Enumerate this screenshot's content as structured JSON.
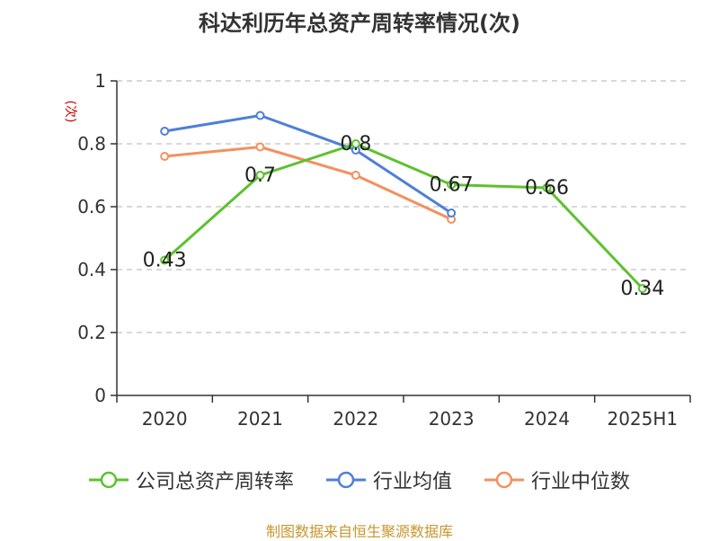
{
  "chart_data": {
    "type": "line",
    "title": "科达利历年总资产周转率情况(次)",
    "ylabel": "(次)",
    "categories": [
      "2020",
      "2021",
      "2022",
      "2023",
      "2024",
      "2025H1"
    ],
    "ylim": [
      0,
      1
    ],
    "yticks": [
      "0",
      "0.2",
      "0.4",
      "0.6",
      "0.8",
      "1"
    ],
    "grid": true,
    "legend_position": "bottom",
    "series": [
      {
        "name": "公司总资产周转率",
        "color": "#5cc22e",
        "values": [
          0.43,
          0.7,
          0.8,
          0.67,
          0.66,
          0.34
        ],
        "labels": [
          "0.43",
          "0.7",
          "0.8",
          "0.67",
          "0.66",
          "0.34"
        ]
      },
      {
        "name": "行业均值",
        "color": "#4f7fd8",
        "values": [
          0.84,
          0.89,
          0.78,
          0.58,
          null,
          null
        ]
      },
      {
        "name": "行业中位数",
        "color": "#f3905e",
        "values": [
          0.76,
          0.79,
          0.7,
          0.56,
          null,
          null
        ]
      }
    ],
    "source": "制图数据来自恒生聚源数据库"
  }
}
